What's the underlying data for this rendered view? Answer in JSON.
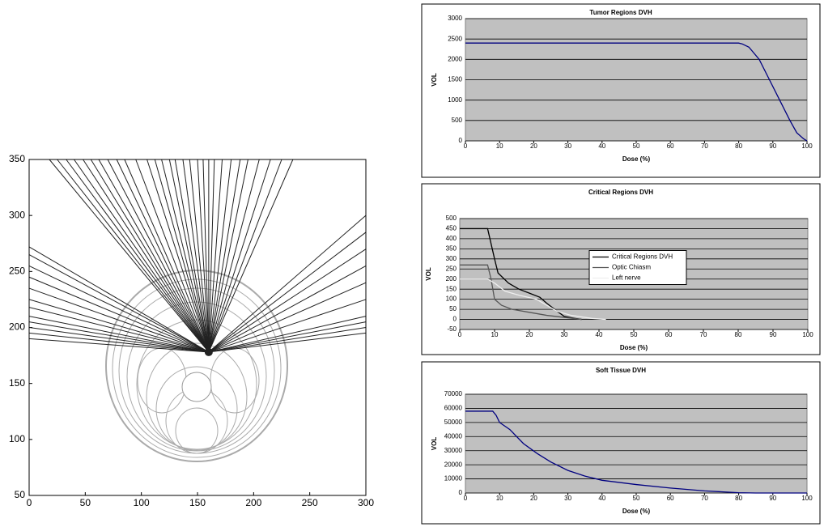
{
  "chart_data": [
    {
      "type": "beam",
      "xlim": [
        0,
        300
      ],
      "ylim": [
        50,
        350
      ],
      "xticks": [
        0,
        50,
        100,
        150,
        200,
        250,
        300
      ],
      "yticks": [
        50,
        100,
        150,
        200,
        250,
        300,
        350
      ],
      "color": "#222222",
      "focus": {
        "x": 160,
        "y": 178
      },
      "beams": {
        "x": [
          18,
          25,
          33,
          40,
          48,
          55,
          62,
          70,
          78,
          85,
          95,
          105,
          112,
          118,
          125,
          130,
          137,
          143,
          150,
          155,
          160,
          165,
          172,
          180,
          188,
          195,
          205,
          215,
          225,
          235,
          0,
          0,
          0,
          0,
          0,
          0,
          0,
          0,
          0,
          0,
          0,
          0,
          300,
          300,
          300,
          300,
          300,
          300,
          300,
          300,
          300,
          300
        ],
        "y": [
          350,
          350,
          350,
          350,
          350,
          350,
          350,
          350,
          350,
          350,
          350,
          350,
          350,
          350,
          350,
          350,
          350,
          350,
          350,
          350,
          350,
          350,
          350,
          350,
          350,
          350,
          350,
          350,
          350,
          350,
          190,
          195,
          200,
          205,
          210,
          218,
          225,
          235,
          245,
          255,
          265,
          272,
          195,
          200,
          205,
          210,
          225,
          240,
          255,
          270,
          285,
          300
        ]
      }
    },
    {
      "type": "line",
      "title": "Tumor Regions DVH",
      "xlabel": "Dose (%)",
      "ylabel": "VOL",
      "xlim": [
        0,
        100
      ],
      "ylim": [
        0,
        3000
      ],
      "xticks": [
        0,
        10,
        20,
        30,
        40,
        50,
        60,
        70,
        80,
        90,
        100
      ],
      "yticks": [
        0,
        500,
        1000,
        1500,
        2000,
        2500,
        3000
      ],
      "grid": true,
      "background": "#c0c0c0",
      "color": "#000080",
      "x": [
        0,
        80,
        81,
        83,
        86,
        89,
        92,
        95,
        97,
        99,
        100
      ],
      "values": [
        2400,
        2400,
        2380,
        2300,
        2000,
        1500,
        1000,
        500,
        200,
        50,
        0
      ]
    },
    {
      "type": "line",
      "title": "Critical Regions DVH",
      "xlabel": "Dose (%)",
      "ylabel": "VOL",
      "xlim": [
        0,
        100
      ],
      "ylim": [
        -50,
        500
      ],
      "xticks": [
        0,
        10,
        20,
        30,
        40,
        50,
        60,
        70,
        80,
        90,
        100
      ],
      "yticks": [
        -50,
        0,
        50,
        100,
        150,
        200,
        250,
        300,
        350,
        400,
        450,
        500
      ],
      "grid": true,
      "background": "#c0c0c0",
      "legend": "center",
      "series": [
        {
          "name": "Critical Regions DVH",
          "color": "#000000",
          "x": [
            0,
            8,
            10,
            11,
            14,
            17,
            20,
            23,
            25,
            28,
            30,
            33,
            35
          ],
          "values": [
            450,
            450,
            300,
            230,
            180,
            150,
            130,
            110,
            80,
            40,
            15,
            5,
            0
          ]
        },
        {
          "name": "Optic Chiasm",
          "color": "#555555",
          "x": [
            0,
            8,
            9,
            10,
            12,
            15,
            20,
            25,
            30,
            35
          ],
          "values": [
            270,
            270,
            200,
            100,
            70,
            50,
            35,
            20,
            10,
            0
          ]
        },
        {
          "name": "Left nerve",
          "color": "#eeeeee",
          "x": [
            0,
            8,
            10,
            13,
            17,
            22,
            25,
            28,
            32,
            38,
            42
          ],
          "values": [
            200,
            200,
            180,
            140,
            120,
            100,
            70,
            40,
            20,
            5,
            0
          ]
        }
      ]
    },
    {
      "type": "line",
      "title": "Soft Tissue DVH",
      "xlabel": "Dose (%)",
      "ylabel": "VOL",
      "xlim": [
        0,
        100
      ],
      "ylim": [
        0,
        70000
      ],
      "xticks": [
        0,
        10,
        20,
        30,
        40,
        50,
        60,
        70,
        80,
        90,
        100
      ],
      "yticks": [
        0,
        10000,
        20000,
        30000,
        40000,
        50000,
        60000,
        70000
      ],
      "grid": true,
      "background": "#c0c0c0",
      "color": "#000080",
      "x": [
        0,
        8,
        9,
        10,
        13,
        17,
        21,
        25,
        30,
        35,
        40,
        50,
        60,
        70,
        80,
        85,
        100
      ],
      "values": [
        58000,
        58000,
        55000,
        50000,
        45000,
        35000,
        28000,
        22000,
        16000,
        12000,
        9000,
        6000,
        3500,
        1500,
        200,
        0,
        0
      ]
    }
  ]
}
